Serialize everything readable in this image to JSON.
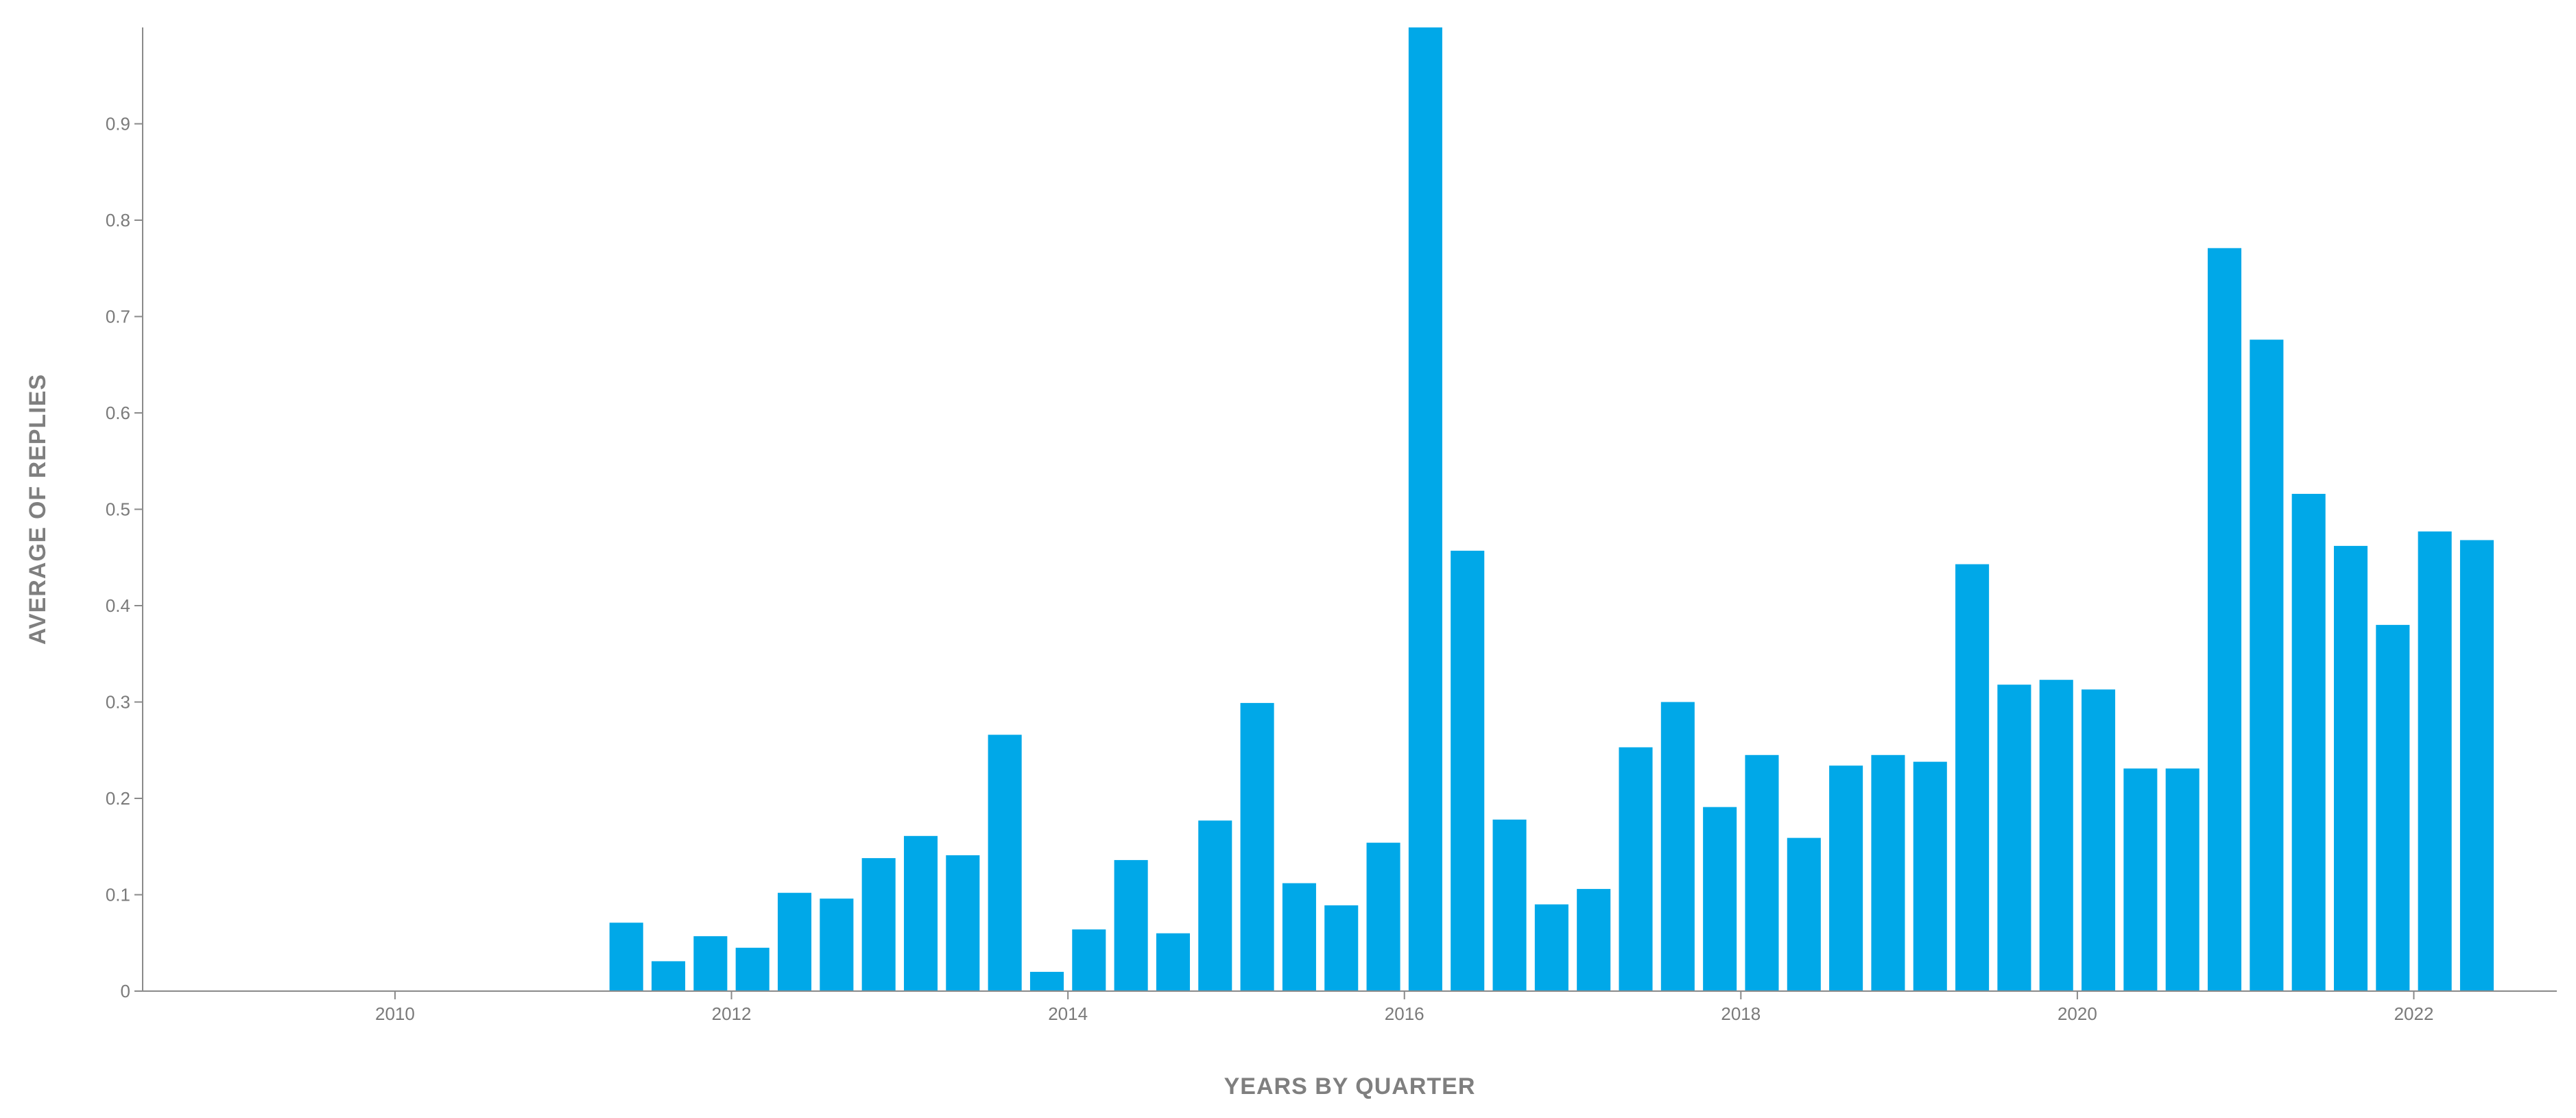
{
  "chart_data": {
    "type": "bar",
    "title": "",
    "xlabel": "YEARS BY QUARTER",
    "ylabel": "AVERAGE OF REPLIES",
    "xlim": [
      2008.5,
      2022.85
    ],
    "ylim": [
      0,
      1.0
    ],
    "xticks": [
      2010,
      2012,
      2014,
      2016,
      2018,
      2020,
      2022
    ],
    "yticks": [
      0,
      0.1,
      0.2,
      0.3,
      0.4,
      0.5,
      0.6,
      0.7,
      0.8,
      0.9
    ],
    "grid": false,
    "bar_color": "#00a8e8",
    "series": [
      {
        "x": [
          2011.375,
          2011.625,
          2011.875,
          2012.125,
          2012.375,
          2012.625,
          2012.875,
          2013.125,
          2013.375,
          2013.625,
          2013.875,
          2014.125,
          2014.375,
          2014.625,
          2014.875,
          2015.125,
          2015.375,
          2015.625,
          2015.875,
          2016.125,
          2016.375,
          2016.625,
          2016.875,
          2017.125,
          2017.375,
          2017.625,
          2017.875,
          2018.125,
          2018.375,
          2018.625,
          2018.875,
          2019.125,
          2019.375,
          2019.625,
          2019.875,
          2020.125,
          2020.375,
          2020.625,
          2020.875,
          2021.125,
          2021.375,
          2021.625,
          2021.875,
          2022.125,
          2022.375
        ],
        "values": [
          0.071,
          0.031,
          0.057,
          0.045,
          0.102,
          0.096,
          0.138,
          0.161,
          0.141,
          0.266,
          0.02,
          0.064,
          0.136,
          0.06,
          0.177,
          0.299,
          0.112,
          0.089,
          0.154,
          1.0,
          0.457,
          0.178,
          0.09,
          0.106,
          0.253,
          0.3,
          0.191,
          0.245,
          0.159,
          0.234,
          0.245,
          0.238,
          0.443,
          0.318,
          0.323,
          0.313,
          0.231,
          0.231,
          0.771,
          0.676,
          0.516,
          0.462,
          0.38,
          0.477,
          0.468
        ]
      }
    ]
  }
}
